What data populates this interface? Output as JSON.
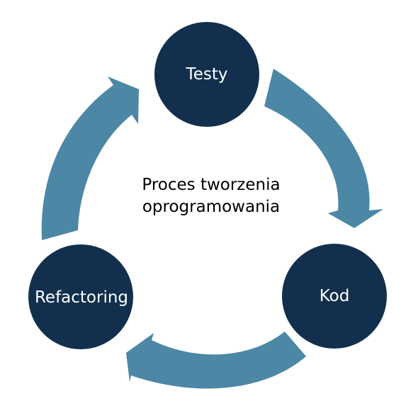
{
  "diagram": {
    "center_text": {
      "line1": "Proces tworzenia",
      "line2": "oprogramowania"
    },
    "nodes": [
      {
        "id": "testy",
        "label": "Testy"
      },
      {
        "id": "kod",
        "label": "Kod"
      },
      {
        "id": "refactoring",
        "label": "Refactoring"
      }
    ],
    "cycle_order": [
      "Testy",
      "Kod",
      "Refactoring"
    ],
    "colors": {
      "node_fill": "#12304d",
      "arrow_fill": "#4c87a6",
      "node_text": "#ffffff",
      "center_text": "#000000",
      "background": "#ffffff"
    }
  }
}
